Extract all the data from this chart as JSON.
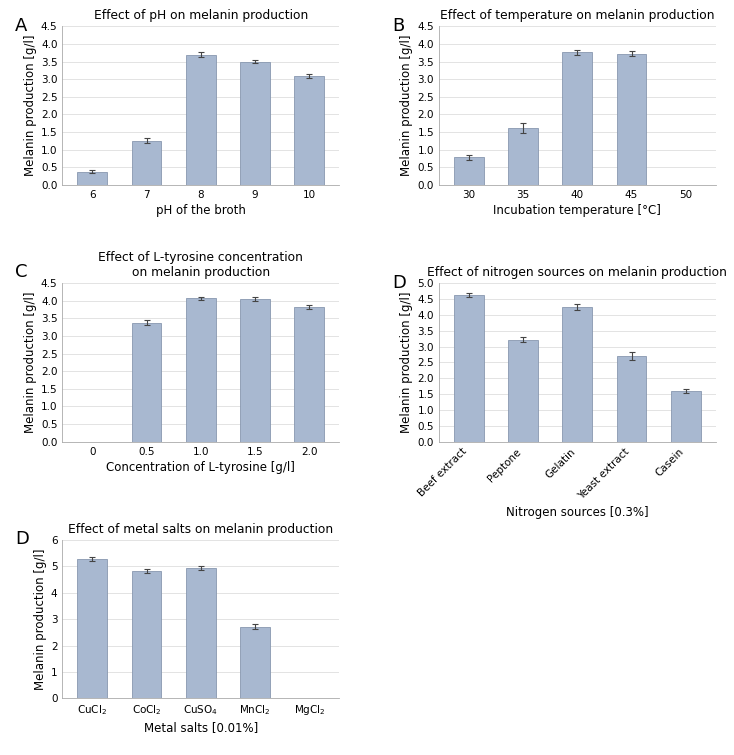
{
  "bar_color": "#a8b8d0",
  "bar_edgecolor": "#8898b0",
  "background_color": "#ffffff",
  "grid_color": "#d8d8d8",
  "panel_A": {
    "label": "A",
    "title": "Effect of pH on melanin production",
    "xlabel": "pH of the broth",
    "ylabel": "Melanin production [g/l]",
    "categories": [
      "6",
      "7",
      "8",
      "9",
      "10"
    ],
    "values": [
      0.38,
      1.25,
      3.7,
      3.5,
      3.1
    ],
    "errors": [
      0.05,
      0.07,
      0.07,
      0.05,
      0.06
    ],
    "ylim": [
      0.0,
      4.5
    ],
    "yticks": [
      0.0,
      0.5,
      1.0,
      1.5,
      2.0,
      2.5,
      3.0,
      3.5,
      4.0,
      4.5
    ],
    "no_bar_indices": [],
    "rotate_xlabels": false
  },
  "panel_B": {
    "label": "B",
    "title": "Effect of temperature on melanin production",
    "xlabel": "Incubation temperature [°C]",
    "ylabel": "Melanin production [g/l]",
    "categories": [
      "30",
      "35",
      "40",
      "45",
      "50"
    ],
    "values": [
      0.78,
      1.62,
      3.77,
      3.72,
      0.0
    ],
    "errors": [
      0.07,
      0.15,
      0.07,
      0.07,
      0.0
    ],
    "ylim": [
      0.0,
      4.5
    ],
    "yticks": [
      0.0,
      0.5,
      1.0,
      1.5,
      2.0,
      2.5,
      3.0,
      3.5,
      4.0,
      4.5
    ],
    "no_bar_indices": [
      4
    ],
    "rotate_xlabels": false
  },
  "panel_C": {
    "label": "C",
    "title": "Effect of L-tyrosine concentration\non melanin production",
    "xlabel": "Concentration of L-tyrosine [g/l]",
    "ylabel": "Melanin production [g/l]",
    "categories": [
      "0",
      "0.5",
      "1.0",
      "1.5",
      "2.0"
    ],
    "values": [
      0.0,
      3.38,
      4.07,
      4.05,
      3.82
    ],
    "errors": [
      0.0,
      0.06,
      0.05,
      0.05,
      0.06
    ],
    "ylim": [
      0.0,
      4.5
    ],
    "yticks": [
      0.0,
      0.5,
      1.0,
      1.5,
      2.0,
      2.5,
      3.0,
      3.5,
      4.0,
      4.5
    ],
    "no_bar_indices": [
      0
    ],
    "rotate_xlabels": false
  },
  "panel_D": {
    "label": "D",
    "title": "Effect of nitrogen sources on melanin production",
    "xlabel": "Nitrogen sources [0.3%]",
    "ylabel": "Melanin production [g/l]",
    "categories": [
      "Beef extract",
      "Peptone",
      "Gelatin",
      "Yeast extract",
      "Casein"
    ],
    "values": [
      4.62,
      3.22,
      4.25,
      2.7,
      1.6
    ],
    "errors": [
      0.07,
      0.07,
      0.1,
      0.12,
      0.06
    ],
    "ylim": [
      0.0,
      5.0
    ],
    "yticks": [
      0.0,
      0.5,
      1.0,
      1.5,
      2.0,
      2.5,
      3.0,
      3.5,
      4.0,
      4.5,
      5.0
    ],
    "no_bar_indices": [],
    "rotate_xlabels": true
  },
  "panel_E": {
    "label": "D",
    "title": "Effect of metal salts on melanin production",
    "xlabel": "Metal salts [0.01%]",
    "ylabel": "Melanin production [g/l]",
    "categories": [
      "CuCl$_2$",
      "CoCl$_2$",
      "CuSO$_4$",
      "MnCl$_2$",
      "MgCl$_2$"
    ],
    "values": [
      5.27,
      4.82,
      4.93,
      2.72,
      0.0
    ],
    "errors": [
      0.07,
      0.07,
      0.08,
      0.08,
      0.0
    ],
    "ylim": [
      0.0,
      6.0
    ],
    "yticks": [
      0,
      1,
      2,
      3,
      4,
      5,
      6
    ],
    "no_bar_indices": [
      4
    ],
    "rotate_xlabels": false
  }
}
